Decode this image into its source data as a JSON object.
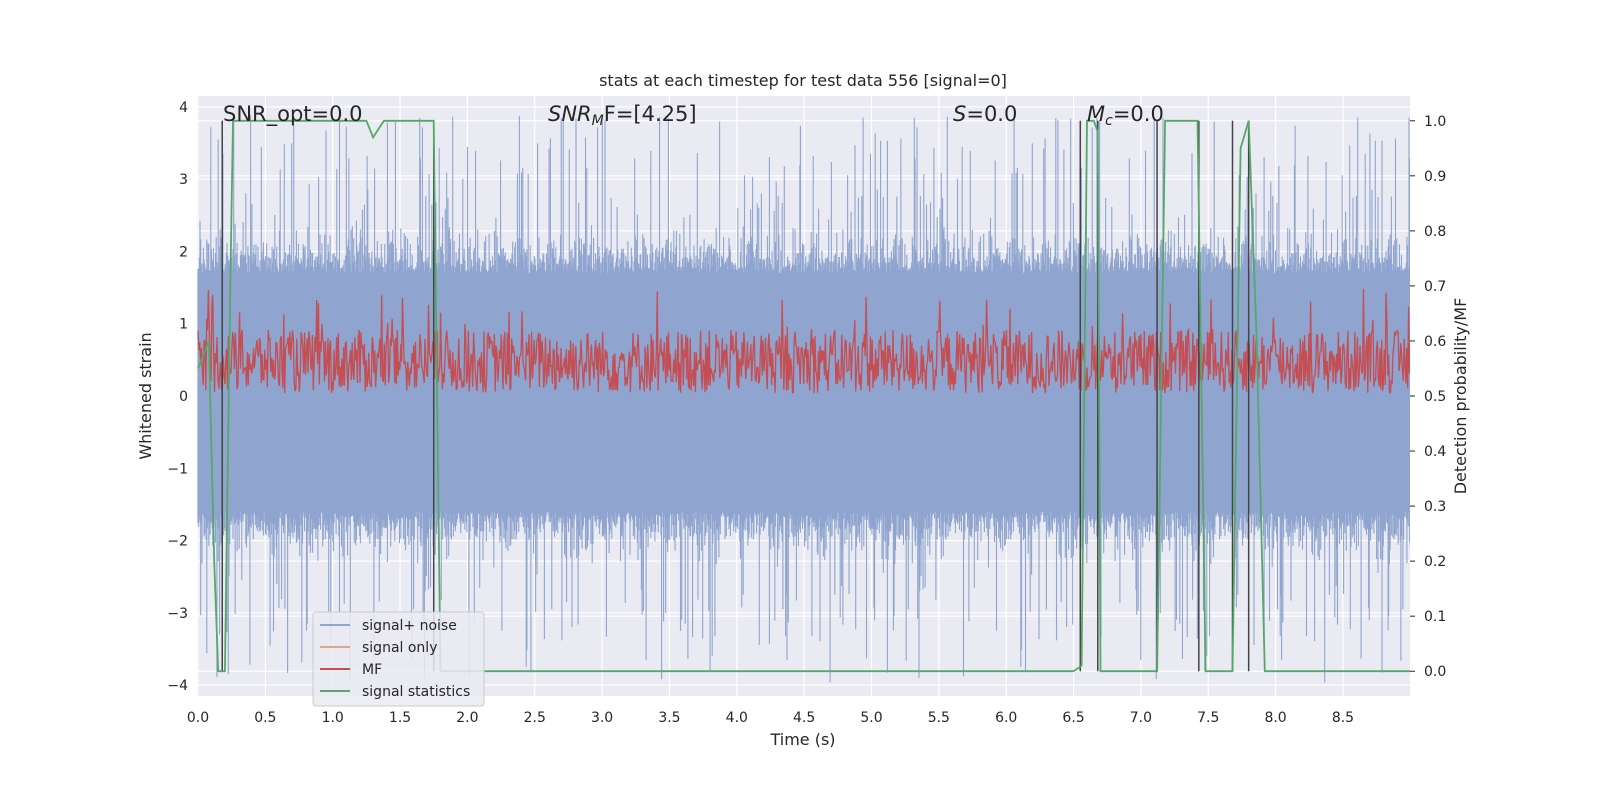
{
  "chart_data": {
    "type": "line",
    "title": "stats at each timestep for test data 556 [signal=0]",
    "xlabel": "Time (s)",
    "ylabel": "Whitened strain",
    "y2label": "Detection probability/MF",
    "xlim": [
      0.0,
      9.0
    ],
    "ylim": [
      -4.15,
      4.15
    ],
    "y2lim": [
      -0.045,
      1.045
    ],
    "xticks": [
      "0.0",
      "0.5",
      "1.0",
      "1.5",
      "2.0",
      "2.5",
      "3.0",
      "3.5",
      "4.0",
      "4.5",
      "5.0",
      "5.5",
      "6.0",
      "6.5",
      "7.0",
      "7.5",
      "8.0",
      "8.5"
    ],
    "yticks": [
      "4",
      "3",
      "2",
      "1",
      "0",
      "−1",
      "−2",
      "−3",
      "−4"
    ],
    "y2ticks": [
      "1.0",
      "0.9",
      "0.8",
      "0.7",
      "0.6",
      "0.5",
      "0.4",
      "0.3",
      "0.2",
      "0.1",
      "0.0"
    ],
    "annotations": {
      "snr_opt": "SNR_opt=0.0",
      "snr_mf_base": "SNR",
      "snr_mf_sub": "M",
      "snr_mf_tail": "F=[4.25]",
      "s": "S",
      "s_tail": "=0.0",
      "mc_base": "M",
      "mc_sub": "c",
      "mc_tail": "=0.0"
    },
    "grid": true,
    "legend_position": "lower-left",
    "series": [
      {
        "name": "signal+ noise",
        "color": "#8fa5cf",
        "axis": "left",
        "envelope": {
          "low": -1.6,
          "high": 1.7,
          "extreme_min": -4.0,
          "extreme_max": 3.9
        }
      },
      {
        "name": "signal only",
        "color": "#e8a18a",
        "axis": "left",
        "values": []
      },
      {
        "name": "MF",
        "color": "#c44e52",
        "axis": "right",
        "band": {
          "low": 0.505,
          "high": 0.62,
          "peak": 0.7
        }
      },
      {
        "name": "signal statistics",
        "color": "#55a868",
        "axis": "right",
        "points": [
          [
            0.0,
            0.55
          ],
          [
            0.05,
            0.58
          ],
          [
            0.08,
            0.6
          ],
          [
            0.12,
            0.2
          ],
          [
            0.15,
            0.0
          ],
          [
            0.2,
            0.0
          ],
          [
            0.24,
            0.7
          ],
          [
            0.26,
            1.0
          ],
          [
            1.25,
            1.0
          ],
          [
            1.3,
            0.97
          ],
          [
            1.38,
            1.0
          ],
          [
            1.75,
            1.0
          ],
          [
            1.8,
            0.0
          ],
          [
            2.2,
            0.0
          ],
          [
            6.5,
            0.0
          ],
          [
            6.56,
            0.01
          ],
          [
            6.6,
            1.0
          ],
          [
            6.65,
            1.0
          ],
          [
            6.68,
            0.98
          ],
          [
            6.7,
            0.0
          ],
          [
            7.12,
            0.0
          ],
          [
            7.18,
            1.0
          ],
          [
            7.42,
            1.0
          ],
          [
            7.48,
            0.0
          ],
          [
            7.68,
            0.0
          ],
          [
            7.74,
            0.95
          ],
          [
            7.8,
            1.0
          ],
          [
            7.86,
            0.6
          ],
          [
            7.92,
            0.0
          ],
          [
            9.0,
            0.0
          ]
        ]
      },
      {
        "name": "",
        "color": "#444444",
        "axis": "right",
        "vlines": [
          0.18,
          1.75,
          6.55,
          6.68,
          7.12,
          7.43,
          7.68,
          7.8
        ]
      }
    ]
  },
  "colors": {
    "axes_bg": "#eaeaf2",
    "grid": "#ffffff",
    "text": "#262626"
  }
}
